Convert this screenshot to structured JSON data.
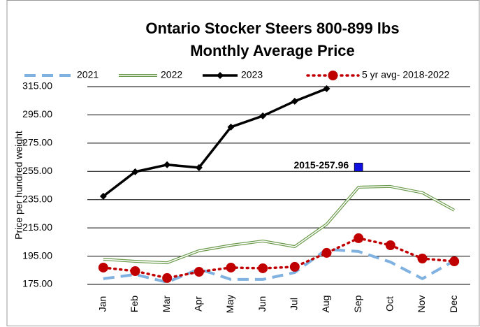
{
  "chart_data": {
    "type": "line",
    "title": "Ontario Stocker Steers 800-899 lbs",
    "subtitle": "Monthly Average Price",
    "y_label": "Price per hundred weight",
    "categories": [
      "Jan",
      "Feb",
      "Mar",
      "Apr",
      "May",
      "Jun",
      "Jul",
      "Aug",
      "Sep",
      "Oct",
      "Nov",
      "Dec"
    ],
    "series": [
      {
        "name": "2021",
        "color": "#7fb2e0",
        "style": "dashed",
        "marker": null,
        "values": [
          179,
          182,
          176.5,
          185.9,
          178.5,
          178.5,
          183.4,
          199.8,
          198.3,
          190.8,
          179,
          191.8
        ]
      },
      {
        "name": "2022",
        "color": "#6a9a4a",
        "style": "double",
        "marker": null,
        "values": [
          192.8,
          191.3,
          190.3,
          198.8,
          202.7,
          205.7,
          201.7,
          217.6,
          243.8,
          244.3,
          239.9,
          227.5
        ]
      },
      {
        "name": "2023",
        "color": "#000000",
        "style": "solid",
        "marker": "diamond",
        "values": [
          237.4,
          254.7,
          259.7,
          257.7,
          286.4,
          294.3,
          304.7,
          313.6,
          null,
          null,
          null,
          null
        ]
      },
      {
        "name": "5 yr avg- 2018-2022",
        "color": "#c00000",
        "style": "dotted",
        "marker": "circle",
        "values": [
          186.9,
          184.4,
          179.5,
          183.9,
          186.9,
          186.4,
          187.4,
          197.3,
          207.7,
          202.7,
          193.3,
          191.3
        ]
      }
    ],
    "annotation": {
      "text": "2015-257.96",
      "category": "Sep",
      "value": 257.96,
      "color": "#1010e0"
    },
    "ylim": [
      175,
      315
    ],
    "yticks": [
      {
        "value": 175,
        "label": "175.00"
      },
      {
        "value": 195,
        "label": "195.00"
      },
      {
        "value": 215,
        "label": "215.00"
      },
      {
        "value": 235,
        "label": "235.00"
      },
      {
        "value": 255,
        "label": "255.00"
      },
      {
        "value": 275,
        "label": "275.00"
      },
      {
        "value": 295,
        "label": "295.00"
      },
      {
        "value": 315,
        "label": "315.00"
      }
    ],
    "grid": true,
    "legend": "top"
  }
}
